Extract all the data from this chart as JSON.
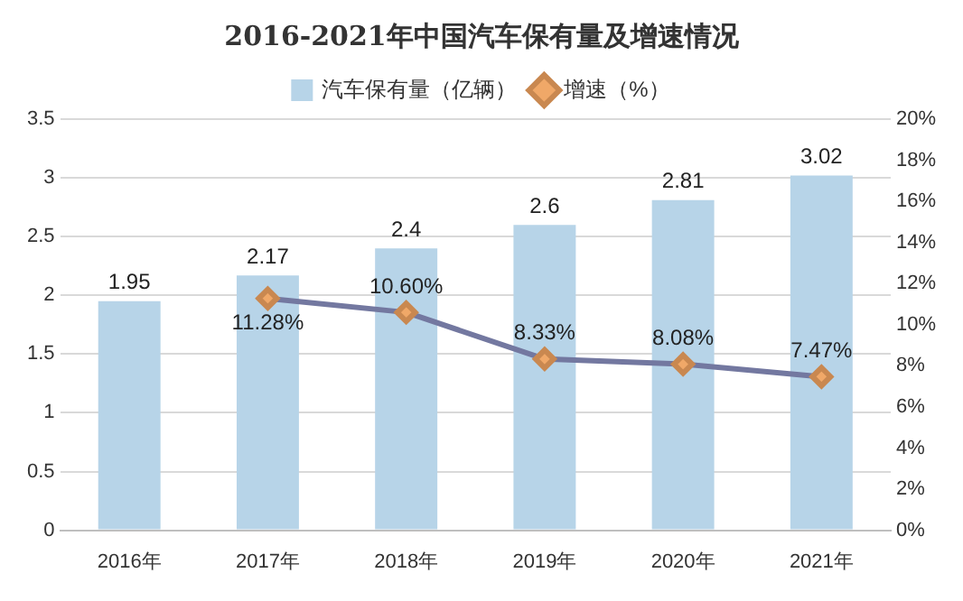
{
  "chart_data": {
    "type": "bar",
    "title": "2016-2021年中国汽车保有量及增速情况",
    "categories": [
      "2016年",
      "2017年",
      "2018年",
      "2019年",
      "2020年",
      "2021年"
    ],
    "series": [
      {
        "name": "汽车保有量（亿辆）",
        "color": "#b7d4e8",
        "values": [
          1.95,
          2.17,
          2.4,
          2.6,
          2.81,
          3.02
        ],
        "value_labels": [
          "1.95",
          "2.17",
          "2.4",
          "2.6",
          "2.81",
          "3.02"
        ]
      },
      {
        "name": "增速（%）",
        "type": "line",
        "axis": "y2",
        "color": "#7378a0",
        "marker": "diamond",
        "values": [
          null,
          11.28,
          10.6,
          8.33,
          8.08,
          7.47
        ],
        "value_labels": [
          null,
          "11.28%",
          "10.60%",
          "8.33%",
          "8.08%",
          "7.47%"
        ]
      }
    ],
    "ylim": [
      0,
      3.5
    ],
    "yticks": [
      0,
      0.5,
      1,
      1.5,
      2,
      2.5,
      3,
      3.5
    ],
    "y2lim": [
      0,
      20
    ],
    "y2ticks": [
      {
        "value": 0,
        "label": "0%"
      },
      {
        "value": 2,
        "label": "2%"
      },
      {
        "value": 4,
        "label": "4%"
      },
      {
        "value": 6,
        "label": "6%"
      },
      {
        "value": 8,
        "label": "8%"
      },
      {
        "value": 10,
        "label": "10%"
      },
      {
        "value": 12,
        "label": "12%"
      },
      {
        "value": 14,
        "label": "14%"
      },
      {
        "value": 16,
        "label": "16%"
      },
      {
        "value": 18,
        "label": "18%"
      },
      {
        "value": 20,
        "label": "20%"
      }
    ],
    "grid": "y",
    "legend": "top"
  }
}
